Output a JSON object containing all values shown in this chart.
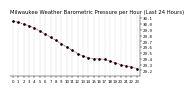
{
  "title": "Milwaukee Weather Barometric Pressure per Hour (Last 24 Hours)",
  "x_values": [
    0,
    1,
    2,
    3,
    4,
    5,
    6,
    7,
    8,
    9,
    10,
    11,
    12,
    13,
    14,
    15,
    16,
    17,
    18,
    19,
    20,
    21,
    22,
    23
  ],
  "y_values": [
    30.05,
    30.03,
    30.0,
    29.97,
    29.93,
    29.88,
    29.83,
    29.77,
    29.72,
    29.66,
    29.6,
    29.55,
    29.49,
    29.45,
    29.42,
    29.4,
    29.4,
    29.39,
    29.36,
    29.33,
    29.3,
    29.28,
    29.26,
    29.23
  ],
  "line_color": "#cc0000",
  "marker_color": "#000000",
  "background_color": "#ffffff",
  "grid_color": "#888888",
  "ylim_min": 29.1,
  "ylim_max": 30.15,
  "y_ticks": [
    29.2,
    29.3,
    29.4,
    29.5,
    29.6,
    29.7,
    29.8,
    29.9,
    30.0,
    30.1
  ],
  "title_fontsize": 3.8,
  "tick_fontsize": 3.0,
  "label_fontsize": 2.8
}
